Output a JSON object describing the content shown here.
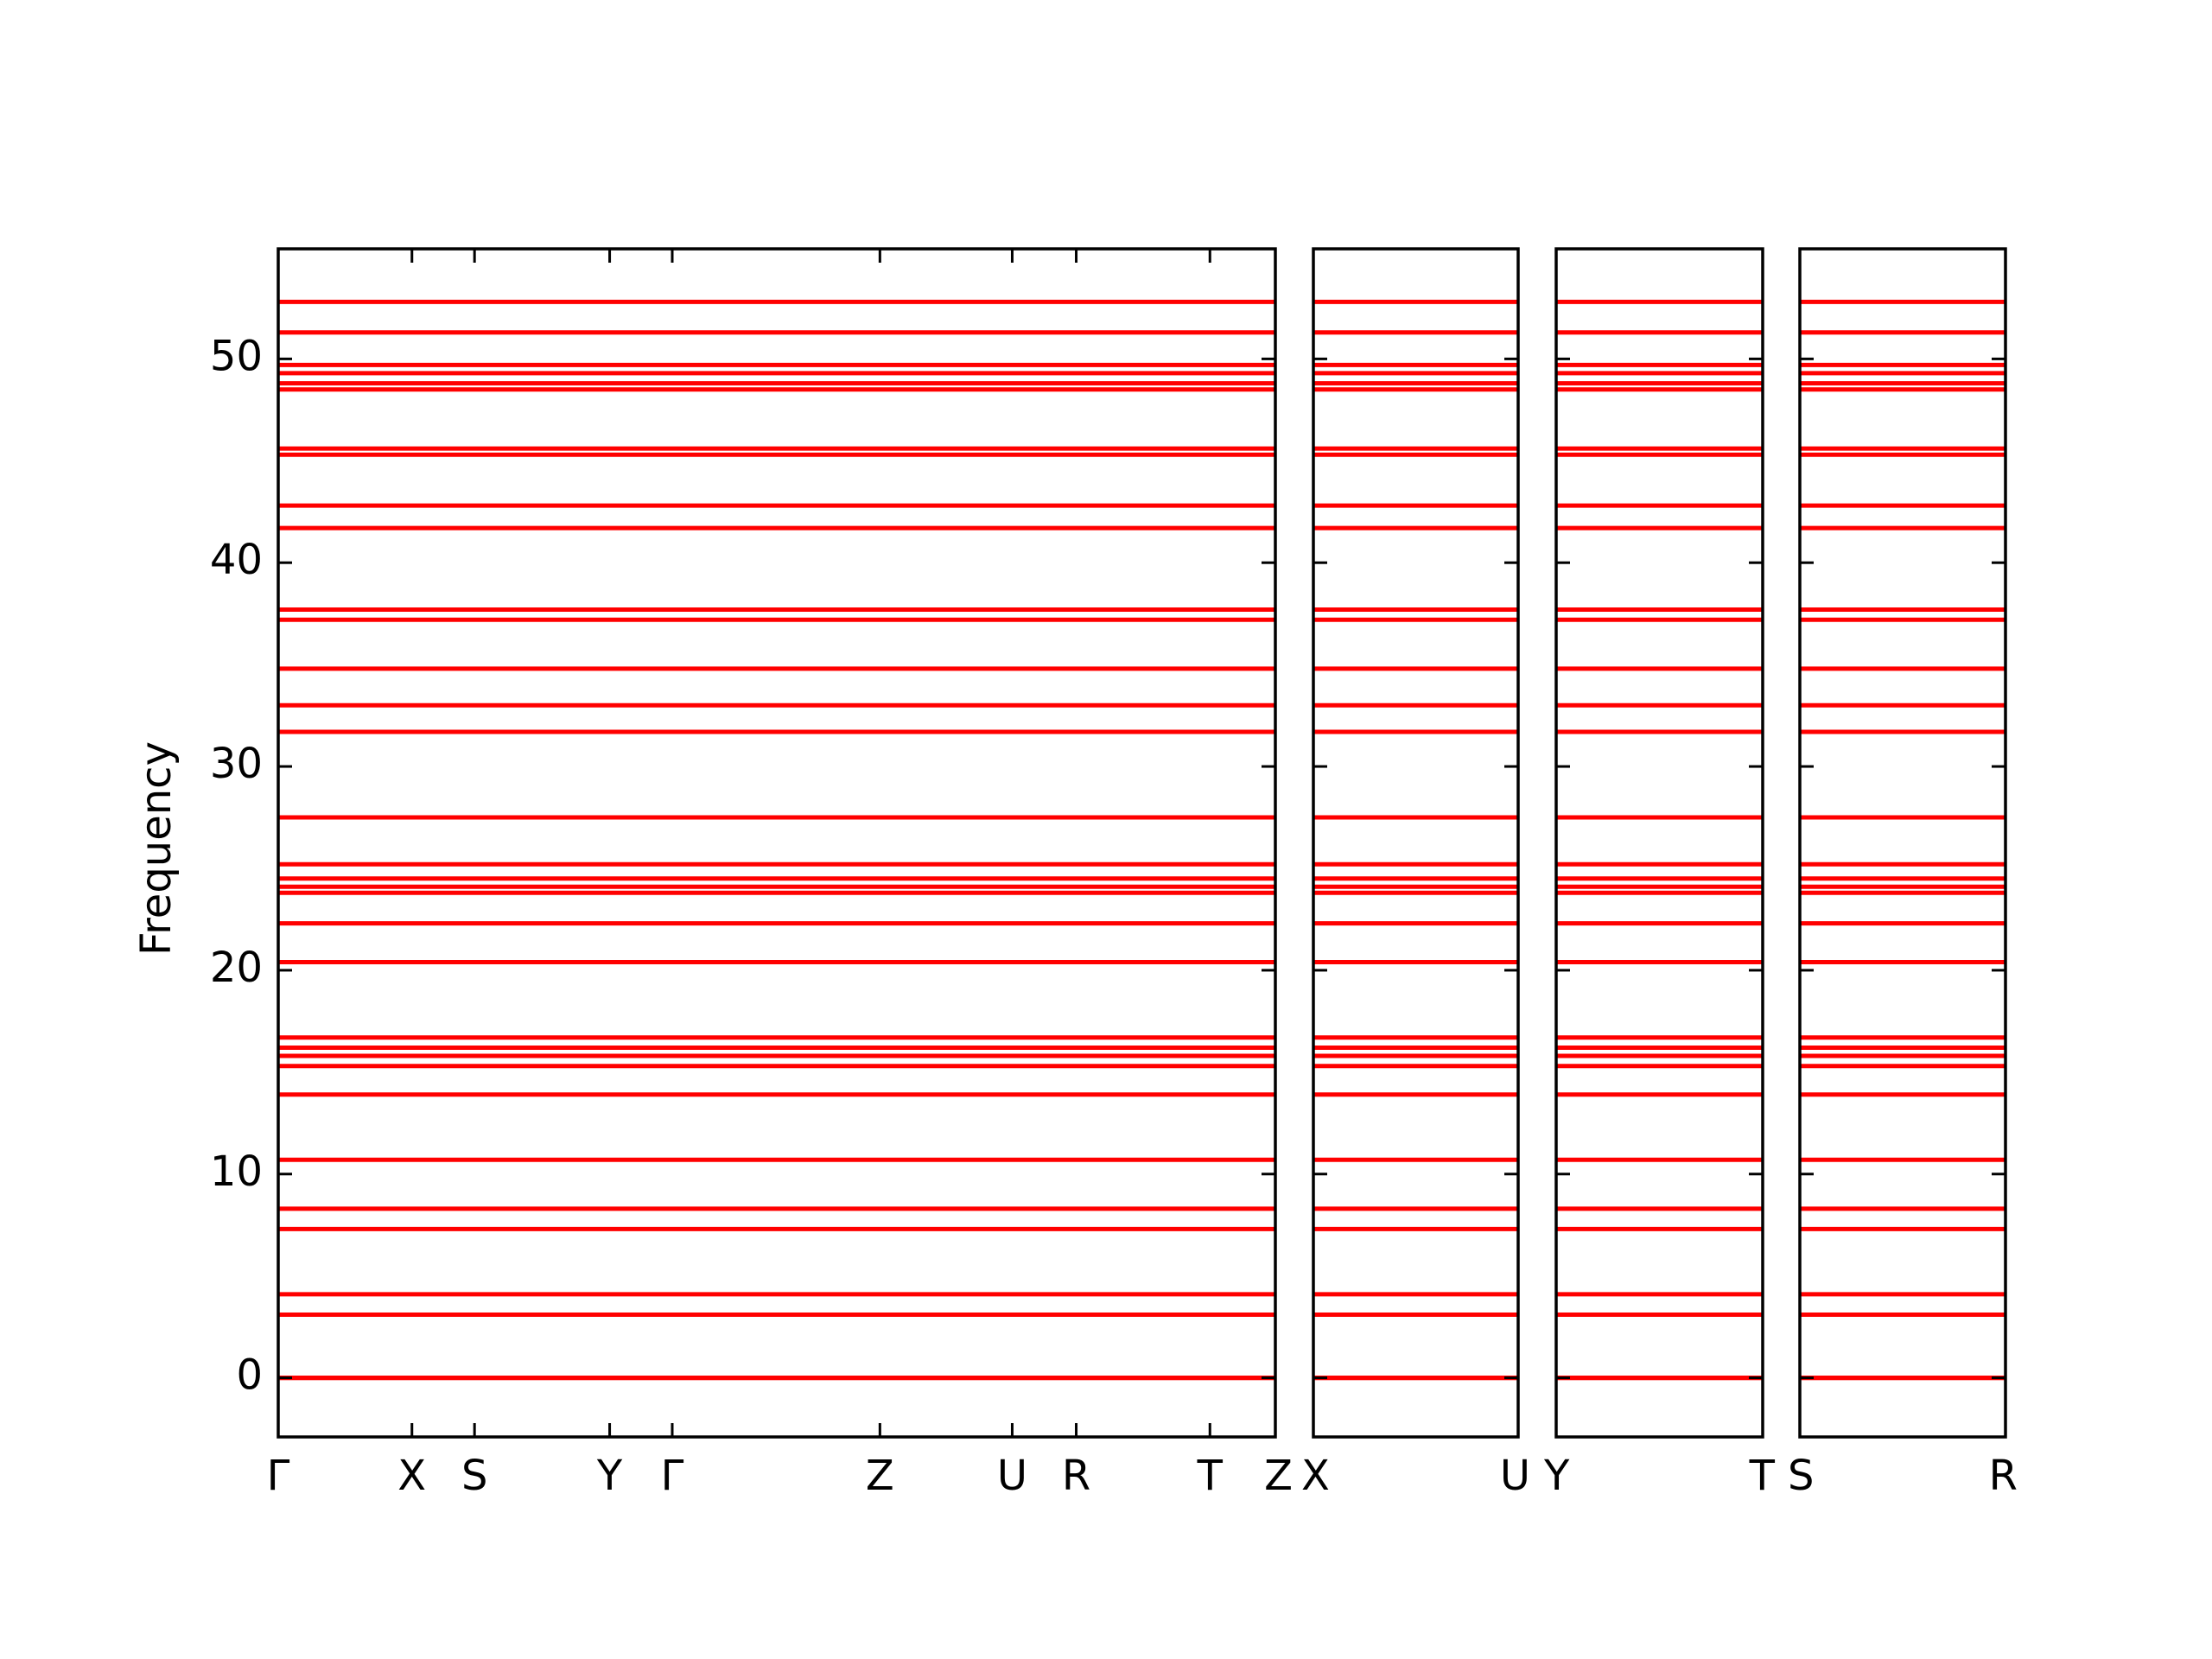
{
  "chart_data": {
    "type": "band",
    "ylabel": "Frequency",
    "ylim": [
      -2.9,
      55.4
    ],
    "yticks": [
      0,
      10,
      20,
      30,
      40,
      50
    ],
    "color": "#ff0000",
    "bands": [
      0,
      0,
      0,
      3.1,
      4.1,
      7.3,
      8.3,
      10.7,
      13.9,
      15.3,
      15.8,
      16.2,
      16.7,
      20.4,
      22.3,
      23.8,
      24.1,
      24.5,
      25.2,
      27.5,
      31.7,
      33.0,
      34.8,
      37.2,
      37.7,
      41.7,
      42.8,
      45.3,
      45.6,
      48.5,
      48.8,
      49.3,
      49.7,
      51.3,
      52.8
    ],
    "panels": [
      {
        "xlim": [
          0,
          7.01
        ],
        "xticks": [
          {
            "value": 0,
            "label": "Γ"
          },
          {
            "value": 0.94,
            "label": "X"
          },
          {
            "value": 1.38,
            "label": "S"
          },
          {
            "value": 2.33,
            "label": "Y"
          },
          {
            "value": 2.77,
            "label": "Γ"
          },
          {
            "value": 4.23,
            "label": "Z"
          },
          {
            "value": 5.16,
            "label": "U"
          },
          {
            "value": 5.61,
            "label": "R"
          },
          {
            "value": 6.55,
            "label": "T"
          },
          {
            "value": 7.01,
            "label": "Z"
          }
        ]
      },
      {
        "xlim": [
          0,
          1.44
        ],
        "xticks": [
          {
            "value": 0,
            "label": "X"
          },
          {
            "value": 1.44,
            "label": "U"
          }
        ]
      },
      {
        "xlim": [
          0,
          1.45
        ],
        "xticks": [
          {
            "value": 0,
            "label": "Y"
          },
          {
            "value": 1.45,
            "label": "T"
          }
        ]
      },
      {
        "xlim": [
          0,
          1.45
        ],
        "xticks": [
          {
            "value": 0,
            "label": "S"
          },
          {
            "value": 1.45,
            "label": "R"
          }
        ]
      }
    ]
  }
}
